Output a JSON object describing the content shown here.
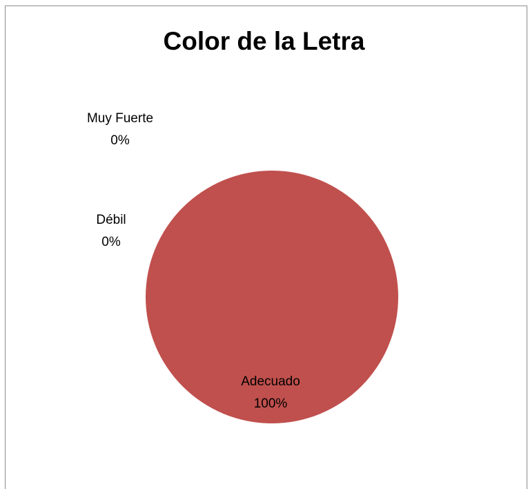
{
  "chart_data": {
    "type": "pie",
    "title": "Color de la Letra",
    "slices": [
      {
        "label": "Muy Fuerte",
        "percent_label": "0%",
        "value": 0,
        "color": "#c0504d"
      },
      {
        "label": "Débil",
        "percent_label": "0%",
        "value": 0,
        "color": "#9bbb59"
      },
      {
        "label": "Adecuado",
        "percent_label": "100%",
        "value": 100,
        "color": "#c0504d"
      }
    ]
  }
}
